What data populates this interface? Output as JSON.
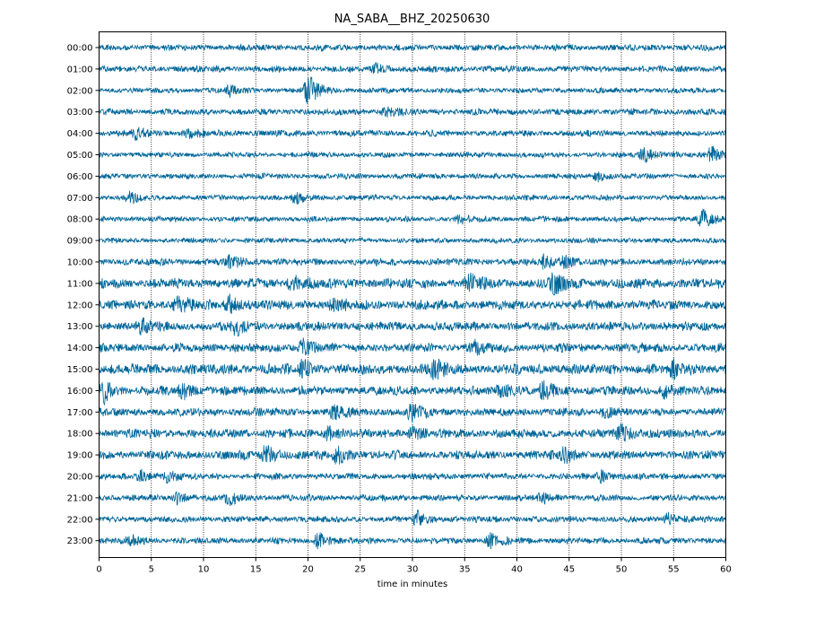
{
  "chart_data": {
    "type": "line",
    "title": "NA_SABA__BHZ_20250630",
    "xlabel": "time in minutes",
    "ylabel": "",
    "xlim": [
      0,
      60
    ],
    "xticks": [
      0,
      5,
      10,
      15,
      20,
      25,
      30,
      35,
      40,
      45,
      50,
      55,
      60
    ],
    "xtick_labels": [
      "0",
      "5",
      "10",
      "15",
      "20",
      "25",
      "30",
      "35",
      "40",
      "45",
      "50",
      "55",
      "60"
    ],
    "grid": "vertical dotted at each x tick",
    "trace_color": "#006699",
    "rows": [
      {
        "label": "00:00",
        "amplitude": 0.35,
        "events": []
      },
      {
        "label": "01:00",
        "amplitude": 0.35,
        "events": [
          {
            "t": 26.5,
            "a": 0.5
          }
        ]
      },
      {
        "label": "02:00",
        "amplitude": 0.3,
        "events": [
          {
            "t": 12.5,
            "a": 0.5
          },
          {
            "t": 19.8,
            "a": 1.0
          },
          {
            "t": 20.3,
            "a": 0.8
          }
        ]
      },
      {
        "label": "03:00",
        "amplitude": 0.35,
        "events": [
          {
            "t": 27.5,
            "a": 0.5
          }
        ]
      },
      {
        "label": "04:00",
        "amplitude": 0.35,
        "events": [
          {
            "t": 3.5,
            "a": 0.6
          },
          {
            "t": 8.5,
            "a": 0.5
          }
        ]
      },
      {
        "label": "05:00",
        "amplitude": 0.3,
        "events": [
          {
            "t": 52.2,
            "a": 0.8
          },
          {
            "t": 58.5,
            "a": 0.9
          }
        ]
      },
      {
        "label": "06:00",
        "amplitude": 0.3,
        "events": [
          {
            "t": 47.8,
            "a": 0.5
          }
        ]
      },
      {
        "label": "07:00",
        "amplitude": 0.3,
        "events": [
          {
            "t": 3.0,
            "a": 0.6
          },
          {
            "t": 18.8,
            "a": 0.6
          }
        ]
      },
      {
        "label": "08:00",
        "amplitude": 0.3,
        "events": [
          {
            "t": 34.5,
            "a": 0.5
          },
          {
            "t": 57.8,
            "a": 1.0
          }
        ]
      },
      {
        "label": "09:00",
        "amplitude": 0.28,
        "events": []
      },
      {
        "label": "10:00",
        "amplitude": 0.4,
        "events": [
          {
            "t": 12.5,
            "a": 0.6
          },
          {
            "t": 42.5,
            "a": 0.6
          },
          {
            "t": 44.5,
            "a": 0.6
          }
        ]
      },
      {
        "label": "11:00",
        "amplitude": 0.55,
        "events": [
          {
            "t": 18.5,
            "a": 0.8
          },
          {
            "t": 35.5,
            "a": 0.9
          },
          {
            "t": 43.5,
            "a": 1.0
          }
        ]
      },
      {
        "label": "12:00",
        "amplitude": 0.55,
        "events": [
          {
            "t": 7.5,
            "a": 0.9
          },
          {
            "t": 12.5,
            "a": 0.8
          },
          {
            "t": 22.5,
            "a": 0.7
          }
        ]
      },
      {
        "label": "13:00",
        "amplitude": 0.5,
        "events": [
          {
            "t": 13.0,
            "a": 0.8
          },
          {
            "t": 4.0,
            "a": 0.6
          }
        ]
      },
      {
        "label": "14:00",
        "amplitude": 0.5,
        "events": [
          {
            "t": 19.5,
            "a": 0.8
          },
          {
            "t": 36.0,
            "a": 0.6
          }
        ]
      },
      {
        "label": "15:00",
        "amplitude": 0.6,
        "events": [
          {
            "t": 32.0,
            "a": 0.9
          },
          {
            "t": 19.5,
            "a": 0.7
          },
          {
            "t": 55.0,
            "a": 0.7
          }
        ]
      },
      {
        "label": "16:00",
        "amplitude": 0.5,
        "events": [
          {
            "t": 0.5,
            "a": 1.0
          },
          {
            "t": 8.0,
            "a": 0.7
          },
          {
            "t": 38.5,
            "a": 0.8
          },
          {
            "t": 42.5,
            "a": 0.8
          },
          {
            "t": 54.0,
            "a": 0.7
          }
        ]
      },
      {
        "label": "17:00",
        "amplitude": 0.45,
        "events": [
          {
            "t": 30.0,
            "a": 1.0
          },
          {
            "t": 22.5,
            "a": 0.7
          },
          {
            "t": 48.5,
            "a": 0.6
          }
        ]
      },
      {
        "label": "18:00",
        "amplitude": 0.5,
        "events": [
          {
            "t": 50.0,
            "a": 0.9
          },
          {
            "t": 22.0,
            "a": 0.7
          },
          {
            "t": 30.0,
            "a": 0.6
          }
        ]
      },
      {
        "label": "19:00",
        "amplitude": 0.5,
        "events": [
          {
            "t": 16.0,
            "a": 0.9
          },
          {
            "t": 22.8,
            "a": 0.8
          },
          {
            "t": 44.5,
            "a": 0.7
          }
        ]
      },
      {
        "label": "20:00",
        "amplitude": 0.35,
        "events": [
          {
            "t": 4.0,
            "a": 0.6
          },
          {
            "t": 6.5,
            "a": 0.6
          },
          {
            "t": 48.0,
            "a": 0.5
          }
        ]
      },
      {
        "label": "21:00",
        "amplitude": 0.35,
        "events": [
          {
            "t": 7.5,
            "a": 0.6
          },
          {
            "t": 12.5,
            "a": 0.6
          },
          {
            "t": 42.5,
            "a": 0.5
          }
        ]
      },
      {
        "label": "22:00",
        "amplitude": 0.35,
        "events": [
          {
            "t": 30.5,
            "a": 0.8
          },
          {
            "t": 54.5,
            "a": 0.6
          }
        ]
      },
      {
        "label": "23:00",
        "amplitude": 0.35,
        "events": [
          {
            "t": 21.0,
            "a": 0.8
          },
          {
            "t": 37.5,
            "a": 0.6
          },
          {
            "t": 3.0,
            "a": 0.5
          }
        ]
      }
    ]
  }
}
